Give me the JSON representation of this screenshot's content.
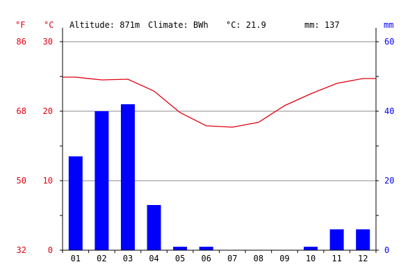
{
  "header": {
    "altitude": "Altitude: 871m",
    "climate": "Climate: BWh",
    "avg_temp": "°C: 21.9",
    "precip_total": "mm: 137"
  },
  "units": {
    "fahrenheit": "°F",
    "celsius": "°C",
    "mm": "mm"
  },
  "colors": {
    "temperature": "#e0000f",
    "precipitation": "#0000ff",
    "grid": "#888888",
    "axis": "#000000"
  },
  "chart_data": {
    "type": "bar+line",
    "categories": [
      "01",
      "02",
      "03",
      "04",
      "05",
      "06",
      "07",
      "08",
      "09",
      "10",
      "11",
      "12"
    ],
    "precipitation_mm": [
      27,
      40,
      42,
      13,
      1,
      1,
      0,
      0,
      0,
      1,
      6,
      6
    ],
    "temperature_c": [
      24.9,
      24.5,
      24.6,
      22.9,
      19.8,
      17.9,
      17.7,
      18.4,
      20.8,
      22.5,
      24.0,
      24.7
    ],
    "celsius_ticks": [
      "0",
      "10",
      "20",
      "30"
    ],
    "fahrenheit_ticks": [
      "32",
      "50",
      "68",
      "86"
    ],
    "mm_ticks": [
      "0",
      "20",
      "40",
      "60"
    ],
    "celsius_range": [
      0,
      30
    ],
    "mm_range": [
      0,
      60
    ],
    "grid": true
  }
}
